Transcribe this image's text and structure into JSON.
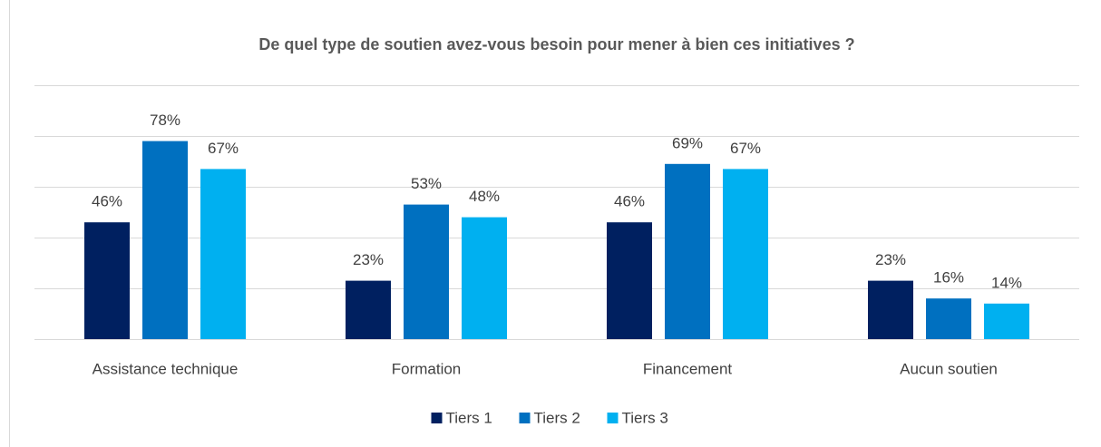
{
  "chart_data": {
    "type": "bar",
    "title": "De quel type de soutien avez-vous besoin pour mener à bien ces initiatives ?",
    "categories": [
      "Assistance technique",
      "Formation",
      "Financement",
      "Aucun soutien"
    ],
    "series": [
      {
        "name": "Tiers 1",
        "color": "#002060",
        "values": [
          46,
          23,
          46,
          23
        ],
        "value_labels": [
          "46%",
          "23%",
          "46%",
          "23%"
        ]
      },
      {
        "name": "Tiers 2",
        "color": "#0070c0",
        "values": [
          78,
          53,
          69,
          16
        ],
        "value_labels": [
          "78%",
          "53%",
          "69%",
          "16%"
        ]
      },
      {
        "name": "Tiers 3",
        "color": "#00b0f0",
        "values": [
          67,
          48,
          67,
          14
        ],
        "value_labels": [
          "67%",
          "48%",
          "67%",
          "14%"
        ]
      }
    ],
    "ylim": [
      0,
      100
    ],
    "yticks": [
      0,
      20,
      40,
      60,
      80,
      100
    ],
    "grid": true,
    "legend": "bottom"
  }
}
